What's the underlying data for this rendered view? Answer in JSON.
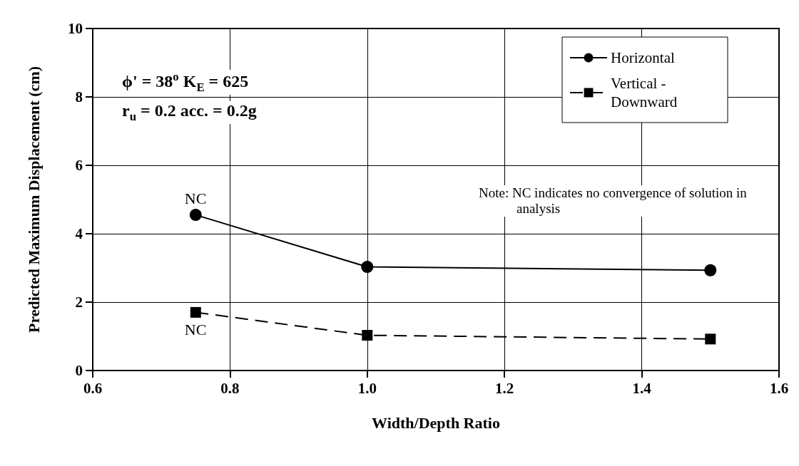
{
  "chart_data": {
    "type": "line",
    "xlabel": "Width/Depth Ratio",
    "ylabel": "Predicted Maximum Displacement (cm)",
    "x": [
      0.75,
      1.0,
      1.5
    ],
    "series": [
      {
        "name": "Horizontal",
        "color": "#000000",
        "values": [
          4.55,
          3.03,
          2.93
        ],
        "marker": "circle",
        "line_style": "solid"
      },
      {
        "name": "Vertical - Downward",
        "color": "#000000",
        "values": [
          1.7,
          1.03,
          0.92
        ],
        "marker": "square",
        "line_style": "dashed"
      }
    ],
    "xlim": [
      0.6,
      1.6
    ],
    "xticks": [
      0.6,
      0.8,
      {
        "value": 1.0,
        "label": "1.0"
      },
      1.2,
      1.4,
      1.6
    ],
    "ylim": [
      0,
      10
    ],
    "yticks": [
      0,
      2,
      4,
      6,
      8,
      10
    ],
    "grid": true,
    "legend": "top right",
    "annotations": [
      "ϕ' = 38$^{o}$   K$_{E}$ = 625",
      "r$_{u}$ = 0.2  acc. = 0.2g",
      {
        "text": "NC",
        "x": 0.75,
        "y": 4.55
      },
      {
        "text": "NC",
        "x": 0.75,
        "y": 1.7
      },
      "Note:  NC indicates no convergence of solution in analysis"
    ]
  }
}
